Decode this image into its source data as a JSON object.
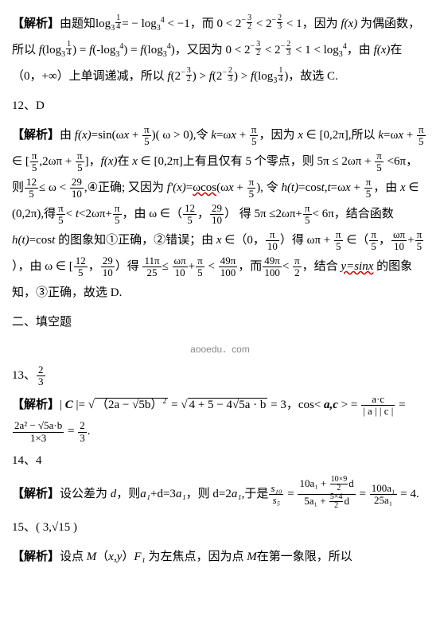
{
  "p1": {
    "label": "【解析】",
    "t1": "由题知log",
    "exp1_base": "3",
    "exp1_sup_num": "1",
    "exp1_sup_den": "4",
    "t2": "= −  log",
    "exp2_base": "3",
    "exp2_sup": "4",
    "t3": " < −1，而 0 < 2",
    "e3a_num": "3",
    "e3a_den": "2",
    "t4": " < 2",
    "e3b_num": "2",
    "e3b_den": "3",
    "t5": " < 1，因为 ",
    "fx": "f(x)",
    "t6": " 为偶函数，所以 ",
    "f1": "f",
    "t7": "(log",
    "t8": ") = ",
    "f2": "f",
    "t9": "(-log",
    "t10": ") = ",
    "f3": "f",
    "t11": "(log",
    "t12": ")，又因为 0 < 2",
    "t13": " < 2",
    "t14": " < 1 < log",
    "t15": "，由 ",
    "fx2": "f(x)",
    "t16": "在（0，+∞）上单调递减，所以 ",
    "f4": "f",
    "t17": "(2",
    "t18": ") > ",
    "f5": "f",
    "t19": "(2",
    "t20": ") > ",
    "f6": "f",
    "t21": "(log",
    "t22": ")，故选 C."
  },
  "q12": "12、D",
  "p2": {
    "label": "【解析】",
    "t1": "由 ",
    "fx": "f(x)",
    "t2": "=sin(ω",
    "x": "x",
    "t3": " + ",
    "pi5_num": "π",
    "pi5_den": "5",
    "t4": ")( ω > 0),令 ",
    "k": "k",
    "t5": "=ω",
    "t6": " + ",
    "t7": "，因为 ",
    "t8": " ∈ [0,2π],所以 ",
    "t9": "=ω",
    "t10": " + ",
    "t11": " ∈ [",
    "t12": ",2ωπ + ",
    "t13": "]，",
    "fx2": "f(x)",
    "t14": "在 ",
    "t15": " ∈ [0,2π]上有且仅有 5 个零点，则 5π ≤ 2ωπ + ",
    "t16": " <6π，则",
    "f125_num": "12",
    "f125_den": "5",
    "t17": "≤ ω < ",
    "f2910_num": "29",
    "f2910_den": "10",
    "t18": ",④正确; 又因为 ",
    "fpx": "f'(x)",
    "t19": "=",
    "wcos": "ωcos",
    "t20": "(ω",
    "t21": " + ",
    "t22": "), 令 ",
    "ht": "h(t)",
    "t23": "=cos",
    "tt": "t",
    "t24": ",",
    "tt2": "t",
    "t25": "=ω",
    "t26": " + ",
    "t27": "，由 ",
    "t28": " ∈ (0,2π),得",
    "t29": "< ",
    "tt3": "t",
    "t30": "<2ωπ+",
    "t31": "，由 ω ∈（",
    "t32": "，",
    "t33": "） 得 5π ≤2ωπ+",
    "t34": "< 6π，结合函数 ",
    "ht2": "h(t)",
    "t35": "=cos",
    "tt4": "t",
    "t36": " 的图象知①正确，②错误；由 ",
    "t37": " ∈（0，",
    "pi10_num": "π",
    "pi10_den": "10",
    "t38": "）得 ωπ + ",
    "t39": " ∈（",
    "t40": "，",
    "wp10_num": "ωπ",
    "wp10_den": "10",
    "t41": "+",
    "t42": "），由 ω ∈ [",
    "t43": "，",
    "t44": "）得 ",
    "f11p25_num": "11π",
    "f11p25_den": "25",
    "t45": "≤ ",
    "t46": "+",
    "t47": " < ",
    "f49p100_num": "49π",
    "f49p100_den": "100",
    "t48": "，而",
    "t49": "< ",
    "pi2_num": "π",
    "pi2_den": "2",
    "t50": "，结合 ",
    "ysin": "y=sinx",
    "t51": " 的图象知，③正确，故选 D."
  },
  "sec2": "二、填空题",
  "watermark": "aooedu．com",
  "q13": "13、",
  "q13_num": "2",
  "q13_den": "3",
  "p3": {
    "label": "【解析】",
    "t1": "| ",
    "C": "C",
    "t2": " |= ",
    "sqrt1": "（2a − √5b）",
    "sqrt1_exp": "2",
    "t3": " = ",
    "sqrt2": "4 + 5 − 4√5a · b",
    "t4": " = 3，cos< ",
    "ac": "a,c",
    "t5": " > = ",
    "fr1_num": "a·c",
    "fr1_den": "| a | | c |",
    "t6": " = ",
    "fr2_num": "2a² − √5a·b",
    "fr2_den": "1×3",
    "t7": " = ",
    "fr3_num": "2",
    "fr3_den": "3",
    "t8": "."
  },
  "q14": "14、4",
  "p4": {
    "label": "【解析】",
    "t1": "设公差为 ",
    "d": "d",
    "t2": "，则",
    "a1": "a₁",
    "t3": "+d=3",
    "t4": "，则 d=2",
    "t5": ",于是",
    "s10_num": "s₁₀",
    "s10_den": "s₅",
    "t6": " = ",
    "big_num_1": "10a₁ + ",
    "big_num_sub_num": "10×9",
    "big_num_sub_den": "2",
    "big_num_2": "d",
    "big_den_1": "5a₁ + ",
    "big_den_sub_num": "5×4",
    "big_den_sub_den": "2",
    "big_den_2": "d",
    "t7": " = ",
    "fr_num": "100a₁",
    "fr_den": "25a₁",
    "t8": " = 4."
  },
  "q15": "15、( 3,√15 )",
  "p5": {
    "label": "【解析】",
    "t1": "设点 ",
    "M": "M",
    "t2": "（",
    "xy": "x,y",
    "t3": "）",
    "F1": "F₁",
    "t4": " 为左焦点，因为点 ",
    "M2": "M",
    "t5": "在第一象限，所以"
  }
}
